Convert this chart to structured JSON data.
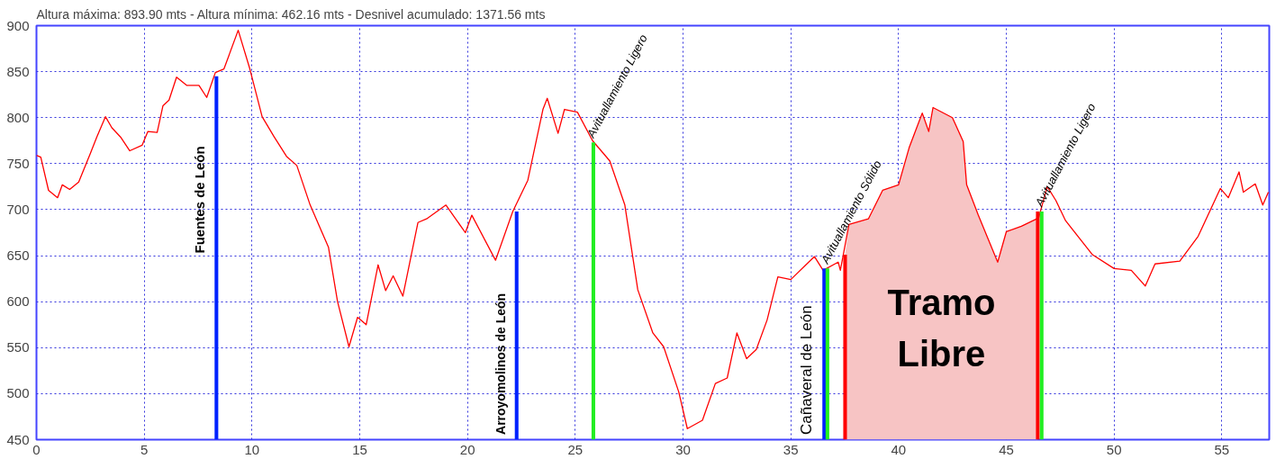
{
  "chart_data": {
    "type": "line",
    "title": "Altura máxima: 893.90 mts - Altura mínima: 462.16 mts - Desnivel acumulado: 1371.56 mts",
    "xlim": [
      0,
      57.2
    ],
    "ylim": [
      450,
      900
    ],
    "xticks": [
      0,
      5,
      10,
      15,
      20,
      25,
      30,
      35,
      40,
      45,
      50,
      55
    ],
    "yticks": [
      450,
      500,
      550,
      600,
      650,
      700,
      750,
      800,
      850,
      900
    ],
    "grid": true,
    "series": [
      {
        "type": "area",
        "color": "#f7c4c4",
        "x": [
          37.52,
          37.7,
          38.6,
          39.26,
          40.0,
          40.5,
          41.1,
          41.4,
          41.6,
          42.5,
          43.0,
          43.16,
          43.7,
          44.6,
          45.0,
          45.7,
          46.46
        ],
        "values": [
          651,
          684,
          690,
          721,
          727,
          768,
          805,
          785,
          811,
          800,
          774,
          727,
          694,
          643,
          676,
          682,
          691
        ]
      },
      {
        "color": "#ff0000",
        "x": [
          0,
          0.2,
          0.56,
          0.98,
          1.2,
          1.54,
          1.96,
          2.5,
          2.8,
          3.2,
          3.5,
          3.9,
          4.33,
          4.9,
          5.17,
          5.6,
          5.87,
          6.15,
          6.5,
          6.98,
          7.54,
          7.9,
          8.3,
          8.7,
          9.36,
          9.9,
          10.47,
          11.03,
          11.6,
          12.08,
          12.7,
          13.55,
          13.97,
          14.5,
          14.9,
          15.3,
          15.85,
          16.2,
          16.55,
          17.0,
          17.7,
          18.1,
          19.0,
          19.9,
          20.2,
          21.3,
          22.1,
          22.8,
          23.5,
          23.7,
          24.2,
          24.5,
          25.1,
          25.8,
          26.6,
          27.3,
          27.9,
          28.6,
          29.1,
          29.8,
          30.2,
          30.9,
          31.5,
          32.05,
          32.5,
          32.95,
          33.4,
          33.9,
          34.4,
          35.0,
          35.7,
          36.1,
          36.5,
          37.2,
          37.3,
          37.7,
          38.6,
          39.26,
          40.0,
          40.5,
          41.1,
          41.4,
          41.6,
          42.5,
          43.0,
          43.16,
          43.7,
          44.6,
          45.0,
          45.7,
          46.5,
          46.9,
          47.3,
          47.75,
          49.0,
          50.0,
          50.8,
          51.45,
          51.9,
          53.05,
          53.9,
          54.93,
          55.3,
          55.8,
          56.0,
          56.55,
          56.9,
          57.16
        ],
        "values": [
          759,
          757,
          721,
          713,
          727,
          722,
          730,
          761,
          779,
          801,
          789,
          779,
          764,
          770,
          785,
          784,
          813,
          819,
          844,
          835,
          835,
          822,
          849,
          853,
          895,
          853,
          801,
          779,
          758,
          748,
          705,
          659,
          600,
          551,
          583,
          575,
          640,
          612,
          628,
          606,
          686,
          690,
          705,
          675,
          694,
          645,
          698,
          732,
          809,
          821,
          783,
          809,
          806,
          775,
          753,
          705,
          613,
          566,
          551,
          502,
          462,
          471,
          511,
          517,
          566,
          538,
          548,
          580,
          627,
          624,
          640,
          649,
          634,
          643,
          634,
          684,
          690,
          721,
          727,
          768,
          805,
          785,
          811,
          800,
          774,
          727,
          694,
          643,
          676,
          682,
          691,
          725,
          710,
          688,
          651,
          636,
          634,
          617,
          641,
          644,
          671,
          723,
          713,
          741,
          719,
          728,
          705,
          719
        ]
      },
      {
        "type": "bar",
        "x": [
          8.35,
          22.28,
          25.84,
          36.55,
          36.7,
          37.52,
          46.46,
          46.64
        ],
        "values": [
          845,
          698,
          773,
          636,
          636,
          651,
          698,
          698
        ],
        "colors": [
          "#0022ff",
          "#0022ff",
          "#22ee22",
          "#0022ff",
          "#22ee22",
          "#ff0000",
          "#ff0000",
          "#22ee22"
        ]
      }
    ],
    "annotations": [
      "Fuentes de León",
      "Arroyomolinos de León",
      {
        "text": "Avituallamiento Ligero",
        "x": 25.84,
        "y": 773
      },
      "Cañaveral de León",
      {
        "text": "Avituallamiento Sólido",
        "x": 36.7,
        "y": 636
      },
      {
        "text": "Avituallamiento Ligero",
        "x": 46.64,
        "y": 698
      },
      "Tramo\nLibre"
    ]
  }
}
